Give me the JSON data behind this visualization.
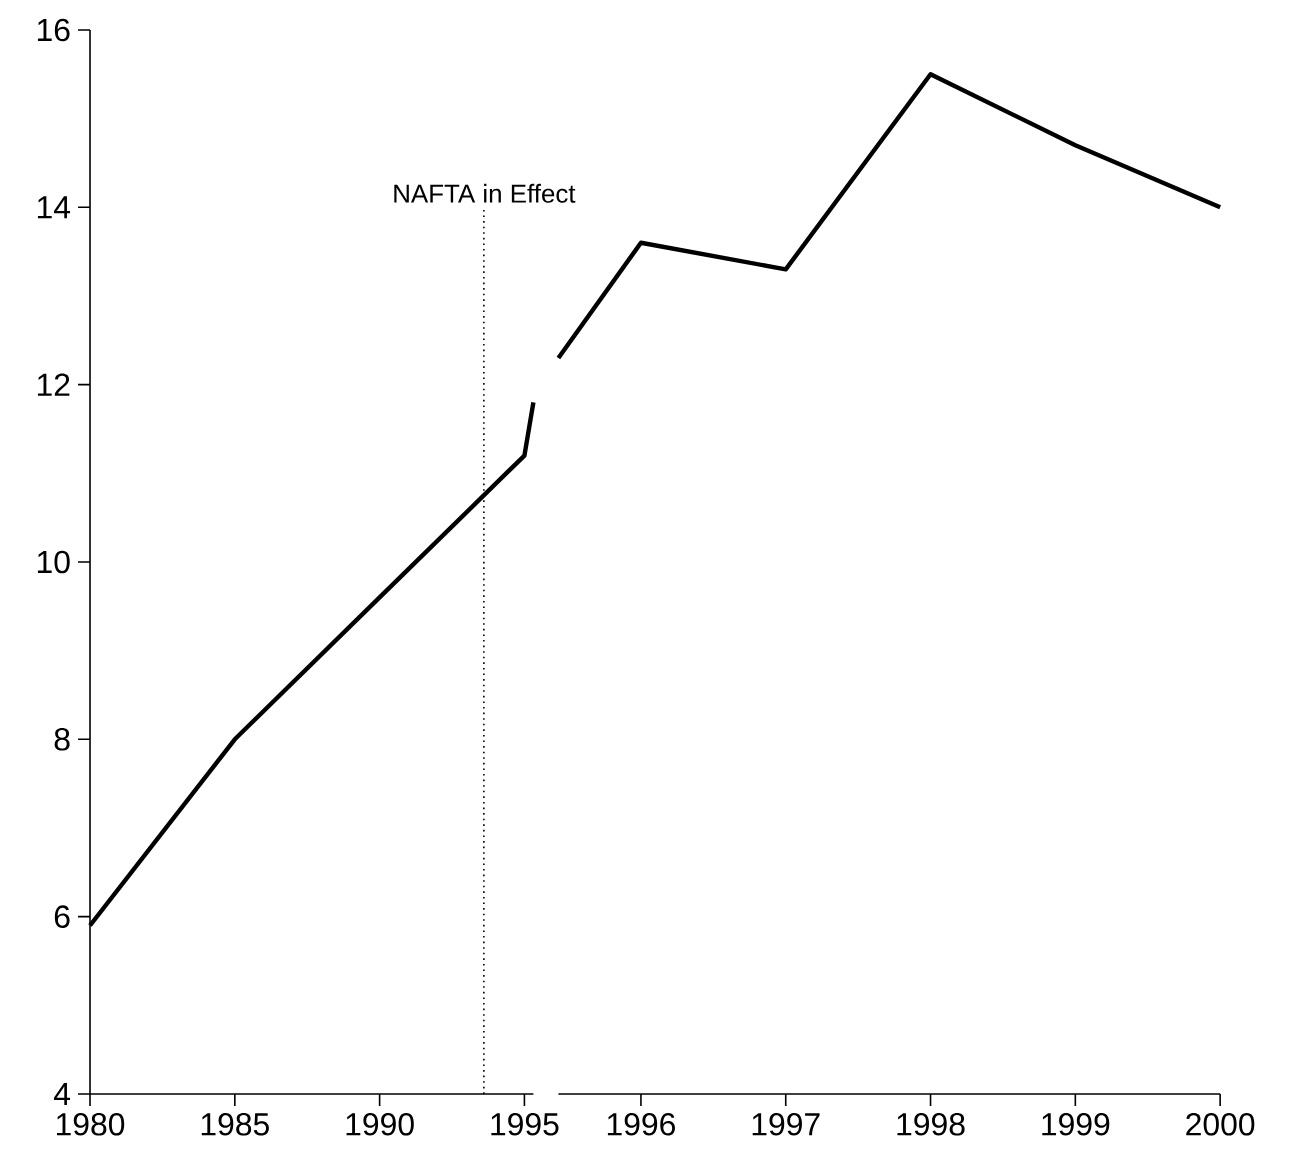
{
  "chart_data": [
    {
      "type": "line",
      "series": [
        {
          "color": "#000000",
          "x": [
            1980,
            1985,
            1990,
            1995,
            1995.31
          ],
          "values": [
            5.9,
            8.0,
            9.6,
            11.2,
            11.8
          ]
        }
      ],
      "xlim": [
        1980,
        1995.31
      ],
      "xticks": [
        1980,
        1985,
        1990,
        1995
      ],
      "ylim": [
        4,
        16
      ],
      "yticks": [
        4,
        6,
        8,
        10,
        12,
        14,
        16
      ],
      "ref_lines": [
        {
          "axis": "x",
          "value": 1993.6,
          "label": "NAFTA in Effect",
          "line_style": "dotted",
          "color": "#000000"
        }
      ]
    },
    {
      "type": "line",
      "series": [
        {
          "color": "#000000",
          "x": [
            1995.43,
            1996,
            1997,
            1998,
            1999,
            2000
          ],
          "values": [
            12.3,
            13.6,
            13.3,
            15.5,
            14.7,
            14.0
          ]
        }
      ],
      "xlim": [
        1995.43,
        2000
      ],
      "xticks": [
        1996,
        1997,
        1998,
        1999,
        2000
      ],
      "ylim": [
        4,
        16
      ],
      "yticks": [
        4,
        6,
        8,
        10,
        12,
        14,
        16
      ],
      "tick_labels": "x"
    }
  ]
}
